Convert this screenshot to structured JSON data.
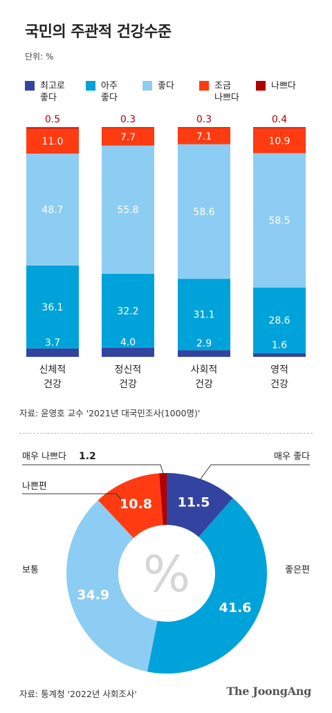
{
  "title": "국민의 주관적 건강수준",
  "unit": "단위: %",
  "colors": {
    "very_good": "#3344a0",
    "quite_good": "#00a3d9",
    "good": "#8ecdf3",
    "somewhat_bad": "#ff3b12",
    "bad": "#b00000",
    "top_label": "#b00000"
  },
  "legend": [
    {
      "label": "최고로\n좋다",
      "color": "#3344a0"
    },
    {
      "label": "아주\n좋다",
      "color": "#00a3d9"
    },
    {
      "label": "좋다",
      "color": "#8ecdf3"
    },
    {
      "label": "조금\n나쁘다",
      "color": "#ff3b12"
    },
    {
      "label": "나쁘다",
      "color": "#b00000"
    }
  ],
  "chart_data": [
    {
      "type": "bar",
      "stacked": true,
      "title": "국민의 주관적 건강수준",
      "unit": "%",
      "categories": [
        "신체적\n건강",
        "정신적\n건강",
        "사회적\n건강",
        "영적\n건강"
      ],
      "series": [
        {
          "name": "최고로 좋다",
          "color": "#3344a0",
          "values": [
            3.7,
            4.0,
            2.9,
            1.6
          ]
        },
        {
          "name": "아주 좋다",
          "color": "#00a3d9",
          "values": [
            36.1,
            32.2,
            31.1,
            28.6
          ]
        },
        {
          "name": "좋다",
          "color": "#8ecdf3",
          "values": [
            48.7,
            55.8,
            58.6,
            58.5
          ]
        },
        {
          "name": "조금 나쁘다",
          "color": "#ff3b12",
          "values": [
            11.0,
            7.7,
            7.1,
            10.9
          ]
        },
        {
          "name": "나쁘다",
          "color": "#b00000",
          "values": [
            0.5,
            0.3,
            0.3,
            0.4
          ]
        }
      ],
      "value_labels": {
        "very_good": [
          "3.7",
          "4.0",
          "2.9",
          "1.6"
        ],
        "quite_good": [
          "36.1",
          "32.2",
          "31.1",
          "28.6"
        ],
        "good": [
          "48.7",
          "55.8",
          "58.6",
          "58.5"
        ],
        "somewhat_bad": [
          "11.0",
          "7.7",
          "7.1",
          "10.9"
        ],
        "bad": [
          "0.5",
          "0.3",
          "0.3",
          "0.4"
        ]
      },
      "ylim": [
        0,
        100
      ],
      "grid": false,
      "legend_position": "top"
    },
    {
      "type": "pie",
      "donut": true,
      "center_label": "%",
      "slices": [
        {
          "name": "매우 좋다",
          "value": 11.5,
          "label": "11.5",
          "color": "#3344a0"
        },
        {
          "name": "좋은편",
          "value": 41.6,
          "label": "41.6",
          "color": "#00a3d9"
        },
        {
          "name": "보통",
          "value": 34.9,
          "label": "34.9",
          "color": "#8ecdf3"
        },
        {
          "name": "나쁜편",
          "value": 10.8,
          "label": "10.8",
          "color": "#ff3b12"
        },
        {
          "name": "매우 나쁘다",
          "value": 1.2,
          "label": "1.2",
          "color": "#b00000"
        }
      ]
    }
  ],
  "source1": "자료: 윤영호 교수 '2021년 대국민조사(1000명)'",
  "source2": "자료: 통계청 '2022년 사회조사'",
  "brand": "The JoongAng"
}
